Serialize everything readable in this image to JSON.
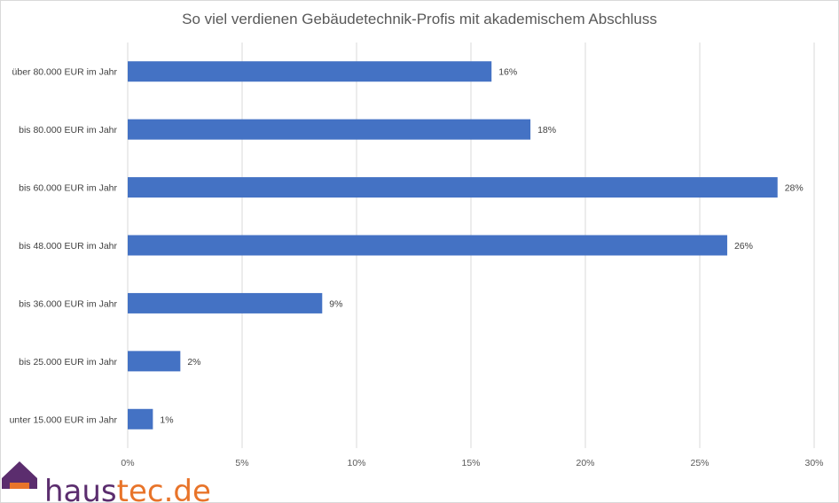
{
  "chart_data": {
    "type": "bar",
    "orientation": "horizontal",
    "title": "So viel verdienen Gebäudetechnik-Profis mit akademischem Abschluss",
    "categories": [
      "über 80.000 EUR im Jahr",
      "bis 80.000 EUR im Jahr",
      "bis 60.000 EUR im Jahr",
      "bis 48.000 EUR im Jahr",
      "bis 36.000 EUR im Jahr",
      "bis 25.000 EUR im Jahr",
      "unter 15.000 EUR im Jahr"
    ],
    "values": [
      16,
      18,
      28,
      26,
      9,
      2,
      1
    ],
    "actual_values": [
      15.9,
      17.6,
      28.4,
      26.2,
      8.5,
      2.3,
      1.1
    ],
    "data_labels": [
      "16%",
      "18%",
      "28%",
      "26%",
      "9%",
      "2%",
      "1%"
    ],
    "xlim": [
      0,
      30
    ],
    "x_ticks": [
      0,
      5,
      10,
      15,
      20,
      25,
      30
    ],
    "x_tick_labels": [
      "0%",
      "5%",
      "10%",
      "15%",
      "20%",
      "25%",
      "30%"
    ],
    "xlabel": "",
    "ylabel": "",
    "grid": "vertical",
    "legend": "none",
    "bar_color": "#4472c4",
    "grid_color": "#d9d9d9"
  },
  "logo": {
    "part1": "haus",
    "part2": "tec.de",
    "color_part1": "#5b2d6e",
    "color_part2": "#e8742a",
    "icon": "house-icon"
  }
}
